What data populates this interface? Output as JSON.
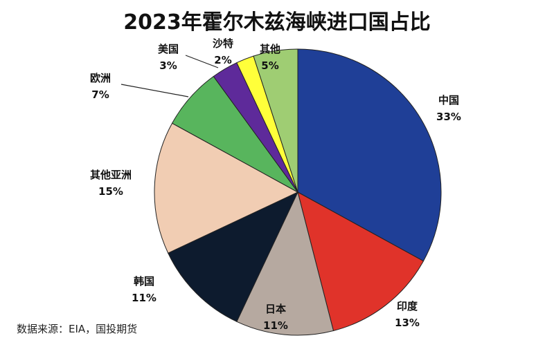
{
  "chart_data": {
    "type": "pie",
    "title": "2023年霍尔木兹海峡进口国占比",
    "source": "数据来源：EIA，国投期货",
    "slices": [
      {
        "name": "中国",
        "value": 33,
        "value_label": "33%",
        "color": "#1f3f97"
      },
      {
        "name": "印度",
        "value": 13,
        "value_label": "13%",
        "color": "#e0332a"
      },
      {
        "name": "日本",
        "value": 11,
        "value_label": "11%",
        "color": "#b6a9a0"
      },
      {
        "name": "韩国",
        "value": 11,
        "value_label": "11%",
        "color": "#0d1b2e"
      },
      {
        "name": "其他亚洲",
        "value": 15,
        "value_label": "15%",
        "color": "#f1cdb3"
      },
      {
        "name": "欧洲",
        "value": 7,
        "value_label": "7%",
        "color": "#58b55d"
      },
      {
        "name": "美国",
        "value": 3,
        "value_label": "3%",
        "color": "#5e2a9a"
      },
      {
        "name": "沙特",
        "value": 2,
        "value_label": "2%",
        "color": "#ffff3a"
      },
      {
        "name": "其他",
        "value": 5,
        "value_label": "5%",
        "color": "#9fcd73"
      }
    ]
  }
}
